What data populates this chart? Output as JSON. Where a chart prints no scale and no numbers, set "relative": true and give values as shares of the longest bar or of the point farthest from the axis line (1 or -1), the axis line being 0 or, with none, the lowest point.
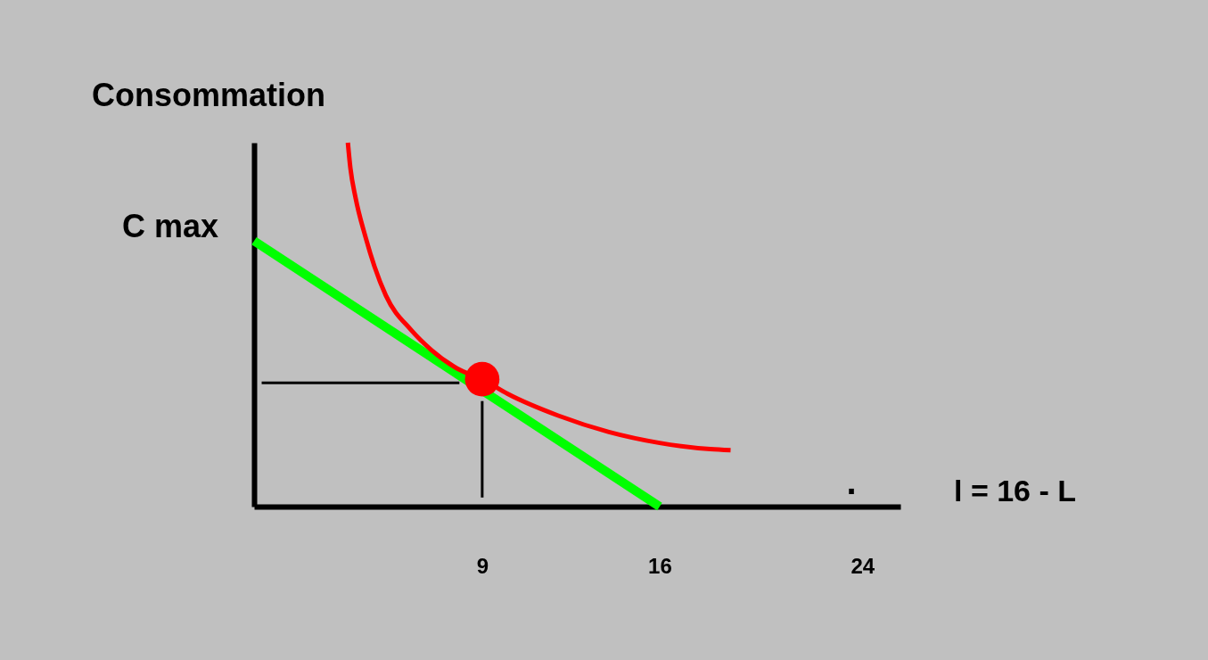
{
  "chart_data": {
    "type": "line",
    "relative": true,
    "ylabel": "Consommation",
    "xlabel": "l = 16 - L",
    "xlim": [
      0,
      25.5
    ],
    "xticks": [
      9,
      16,
      24
    ],
    "grid": false,
    "annotations": [
      {
        "text": "C max",
        "x": 0,
        "y": 0.73
      },
      "."
    ],
    "series": [
      {
        "color": "#00ff00",
        "x": [
          0,
          16
        ],
        "values": [
          0.73,
          0
        ]
      },
      {
        "color": "#ff0000",
        "x": [
          3.7,
          3.8,
          4.0,
          4.4,
          4.75,
          5.2,
          6.2,
          7,
          8,
          9,
          10,
          12,
          14,
          16,
          18,
          18.8
        ],
        "values": [
          1.0,
          0.93,
          0.85,
          0.74,
          0.66,
          0.58,
          0.485,
          0.43,
          0.38,
          0.35,
          0.31,
          0.25,
          0.205,
          0.175,
          0.158,
          0.155
        ]
      },
      {
        "color": "#000000",
        "x": [
          0.3,
          8.1
        ],
        "values": [
          0.34,
          0.34
        ]
      },
      {
        "color": "#000000",
        "x": [
          9,
          9
        ],
        "values": [
          0.29,
          0.025
        ]
      },
      {
        "type": "scatter",
        "color": "#ff0000",
        "x": [
          9
        ],
        "values": [
          0.35
        ]
      }
    ]
  }
}
